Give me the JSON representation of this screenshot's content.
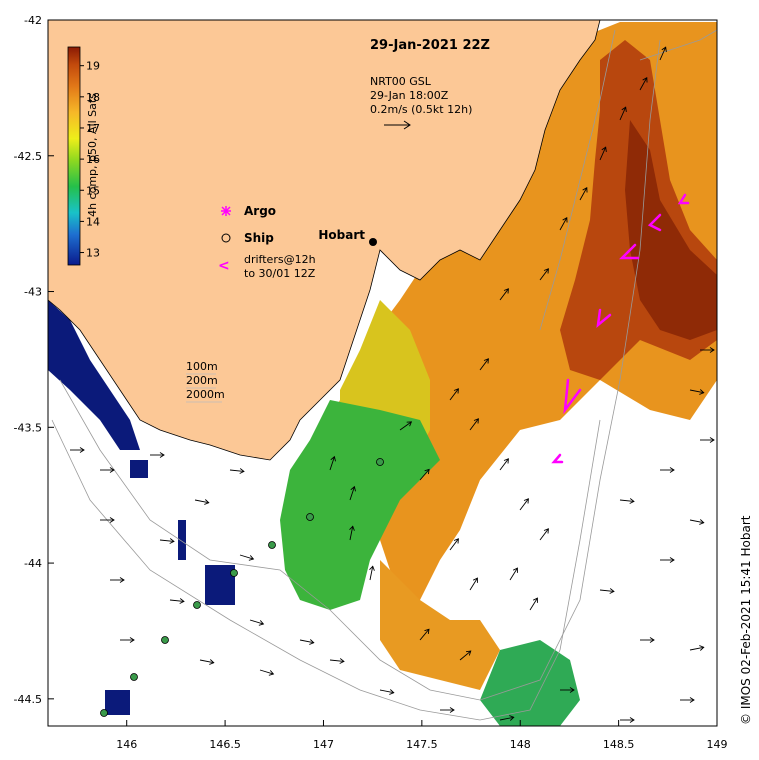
{
  "title": "29-Jan-2021 22Z",
  "vector_info": {
    "line1": "NRT00 GSL",
    "line2": "29-Jan 18:00Z",
    "line3": "0.2m/s (0.5kt 12h)"
  },
  "colorbar": {
    "label": "4h comp, p50, All Sats",
    "ticks": [
      "13",
      "14",
      "15",
      "16",
      "17",
      "18",
      "19"
    ]
  },
  "legend": {
    "argo": "Argo",
    "ship": "Ship",
    "drifters_line1": "drifters@12h",
    "drifters_line2": "to 30/01 12Z",
    "drifter_symbol": "<"
  },
  "isobaths": [
    "100m",
    "200m",
    "2000m"
  ],
  "city": "Hobart",
  "x_ticks": [
    "146",
    "146.5",
    "147",
    "147.5",
    "148",
    "148.5",
    "149"
  ],
  "y_ticks": [
    "-42",
    "-42.5",
    "-43",
    "-43.5",
    "-44",
    "-44.5"
  ],
  "credit": "© IMOS 02-Feb-2021 15:41 Hobart",
  "colors": {
    "land": "#fcc896",
    "argo": "#ff00ff",
    "drifter": "#ff00ff",
    "ship_fill": "#3a9a4a"
  },
  "map_extent": {
    "lon": [
      145.6,
      149
    ],
    "lat": [
      -44.6,
      -42
    ]
  }
}
